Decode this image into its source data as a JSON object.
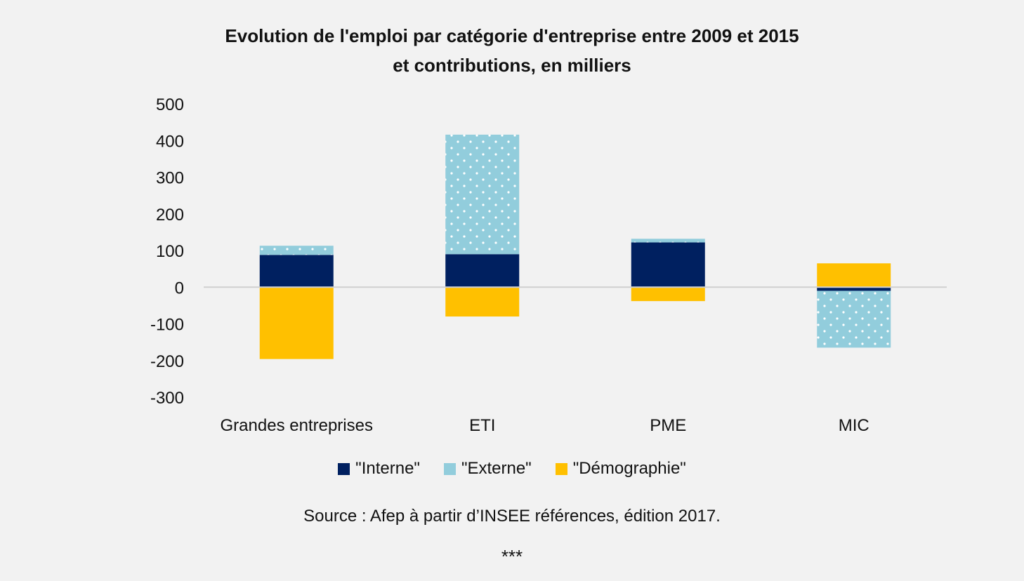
{
  "chart_data": {
    "type": "bar",
    "stacked": true,
    "title_lines": [
      "Evolution de l'emploi par catégorie d'entreprise entre 2009 et 2015",
      "et contributions, en milliers"
    ],
    "categories": [
      "Grandes entreprises",
      "ETI",
      "PME",
      "MIC"
    ],
    "series": [
      {
        "name": "\"Interne\"",
        "color": "#002060",
        "pattern": "solid",
        "values": [
          88,
          90,
          122,
          -10
        ]
      },
      {
        "name": "\"Externe\"",
        "color": "#92cddc",
        "pattern": "dots",
        "values": [
          25,
          326,
          10,
          -155
        ]
      },
      {
        "name": "\"Démographie\"",
        "color": "#ffc000",
        "pattern": "solid",
        "values": [
          -196,
          -80,
          -38,
          65
        ]
      }
    ],
    "ylim": [
      -300,
      500
    ],
    "yticks": [
      500,
      400,
      300,
      200,
      100,
      0,
      -100,
      -200,
      -300
    ],
    "xlabel": "",
    "ylabel": "",
    "grid": false,
    "legend_position": "bottom",
    "source": "Source : Afep à partir d’INSEE références, édition 2017.",
    "footer_mark": "***"
  }
}
